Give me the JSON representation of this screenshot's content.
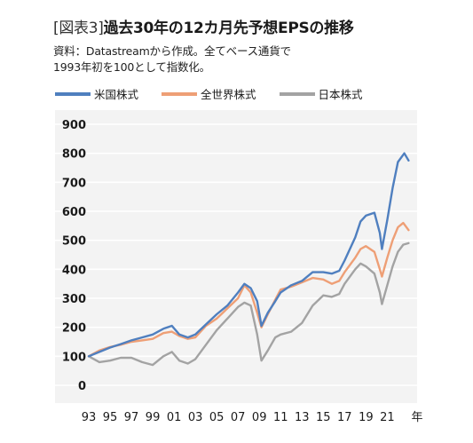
{
  "header": {
    "tag": "[図表3]",
    "title": "過去30年の12カ月先予想EPSの推移",
    "note_line1": "資料：Datastreamから作成。全てベース通貨で",
    "note_line2": "1993年初を100として指数化。"
  },
  "colors": {
    "us": "#4f7fbf",
    "world": "#ee9f76",
    "japan": "#a3a3a3",
    "background": "#f3f3f3",
    "grid": "#ffffff"
  },
  "chart_data": {
    "type": "line",
    "title": "過去30年の12カ月先予想EPSの推移",
    "xlabel": "年",
    "ylabel": "",
    "xlim": [
      1993,
      2023.8
    ],
    "ylim": [
      0,
      900
    ],
    "yticks": [
      0,
      100,
      200,
      300,
      400,
      500,
      600,
      700,
      800,
      900
    ],
    "xticks": [
      "93",
      "95",
      "97",
      "99",
      "01",
      "03",
      "05",
      "07",
      "09",
      "11",
      "13",
      "15",
      "17",
      "19",
      "21"
    ],
    "xtick_values": [
      1993,
      1995,
      1997,
      1999,
      2001,
      2003,
      2005,
      2007,
      2009,
      2011,
      2013,
      2015,
      2017,
      2019,
      2021
    ],
    "x_unit_label": "年",
    "grid": true,
    "legend": "top",
    "series": [
      {
        "name": "米国株式",
        "color_key": "us",
        "points": [
          [
            1993,
            100
          ],
          [
            1994,
            115
          ],
          [
            1995,
            130
          ],
          [
            1996,
            142
          ],
          [
            1997,
            155
          ],
          [
            1998,
            165
          ],
          [
            1999,
            175
          ],
          [
            2000,
            195
          ],
          [
            2000.8,
            205
          ],
          [
            2001.5,
            175
          ],
          [
            2002.3,
            165
          ],
          [
            2003,
            175
          ],
          [
            2004,
            210
          ],
          [
            2005,
            245
          ],
          [
            2006,
            275
          ],
          [
            2007,
            320
          ],
          [
            2007.6,
            350
          ],
          [
            2008.2,
            335
          ],
          [
            2008.8,
            290
          ],
          [
            2009.2,
            205
          ],
          [
            2009.8,
            250
          ],
          [
            2010.5,
            290
          ],
          [
            2011,
            320
          ],
          [
            2012,
            345
          ],
          [
            2013,
            360
          ],
          [
            2014,
            390
          ],
          [
            2015,
            390
          ],
          [
            2015.8,
            385
          ],
          [
            2016.5,
            395
          ],
          [
            2017,
            430
          ],
          [
            2018,
            510
          ],
          [
            2018.5,
            565
          ],
          [
            2019,
            585
          ],
          [
            2019.8,
            595
          ],
          [
            2020.3,
            525
          ],
          [
            2020.5,
            470
          ],
          [
            2021,
            570
          ],
          [
            2021.5,
            680
          ],
          [
            2022,
            770
          ],
          [
            2022.6,
            800
          ],
          [
            2023,
            775
          ]
        ]
      },
      {
        "name": "全世界株式",
        "color_key": "world",
        "points": [
          [
            1993,
            100
          ],
          [
            1994,
            120
          ],
          [
            1995,
            132
          ],
          [
            1996,
            140
          ],
          [
            1997,
            150
          ],
          [
            1998,
            155
          ],
          [
            1999,
            160
          ],
          [
            2000,
            180
          ],
          [
            2000.8,
            185
          ],
          [
            2001.5,
            170
          ],
          [
            2002.3,
            160
          ],
          [
            2003,
            165
          ],
          [
            2004,
            205
          ],
          [
            2005,
            230
          ],
          [
            2006,
            265
          ],
          [
            2007,
            300
          ],
          [
            2007.6,
            345
          ],
          [
            2008.2,
            320
          ],
          [
            2008.8,
            250
          ],
          [
            2009.2,
            200
          ],
          [
            2009.8,
            245
          ],
          [
            2010.5,
            295
          ],
          [
            2011,
            330
          ],
          [
            2012,
            340
          ],
          [
            2013,
            355
          ],
          [
            2014,
            370
          ],
          [
            2015,
            365
          ],
          [
            2015.8,
            350
          ],
          [
            2016.5,
            360
          ],
          [
            2017,
            390
          ],
          [
            2018,
            440
          ],
          [
            2018.5,
            470
          ],
          [
            2019,
            480
          ],
          [
            2019.8,
            460
          ],
          [
            2020.3,
            400
          ],
          [
            2020.5,
            375
          ],
          [
            2021,
            440
          ],
          [
            2021.5,
            500
          ],
          [
            2022,
            545
          ],
          [
            2022.5,
            560
          ],
          [
            2023,
            535
          ]
        ]
      },
      {
        "name": "日本株式",
        "color_key": "japan",
        "points": [
          [
            1993,
            100
          ],
          [
            1994,
            80
          ],
          [
            1995,
            85
          ],
          [
            1996,
            95
          ],
          [
            1997,
            95
          ],
          [
            1998,
            80
          ],
          [
            1999,
            70
          ],
          [
            2000,
            100
          ],
          [
            2000.8,
            115
          ],
          [
            2001.5,
            85
          ],
          [
            2002.3,
            75
          ],
          [
            2003,
            90
          ],
          [
            2004,
            140
          ],
          [
            2005,
            190
          ],
          [
            2006,
            230
          ],
          [
            2007,
            270
          ],
          [
            2007.6,
            285
          ],
          [
            2008.2,
            275
          ],
          [
            2008.8,
            175
          ],
          [
            2009.2,
            85
          ],
          [
            2009.8,
            120
          ],
          [
            2010.5,
            165
          ],
          [
            2011,
            175
          ],
          [
            2012,
            185
          ],
          [
            2013,
            215
          ],
          [
            2014,
            275
          ],
          [
            2015,
            310
          ],
          [
            2015.8,
            305
          ],
          [
            2016.5,
            315
          ],
          [
            2017,
            350
          ],
          [
            2018,
            400
          ],
          [
            2018.5,
            420
          ],
          [
            2019,
            410
          ],
          [
            2019.8,
            385
          ],
          [
            2020.3,
            320
          ],
          [
            2020.5,
            280
          ],
          [
            2021,
            345
          ],
          [
            2021.5,
            410
          ],
          [
            2022,
            460
          ],
          [
            2022.5,
            485
          ],
          [
            2023,
            490
          ]
        ]
      }
    ]
  }
}
